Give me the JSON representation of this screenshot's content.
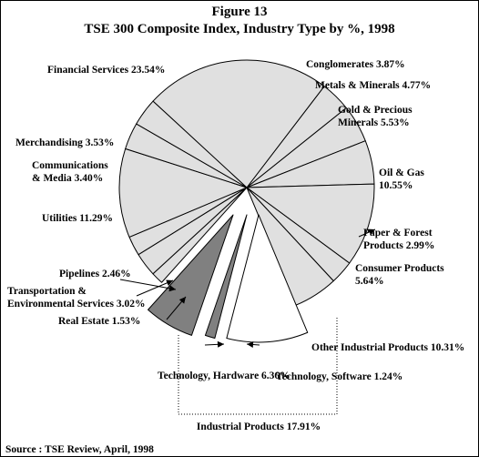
{
  "chart_data": {
    "type": "pie",
    "title": "Figure 13",
    "subtitle": "TSE 300 Composite Index, Industry Type by %, 1998",
    "source": "Source : TSE Review, April, 1998",
    "group_label": "Industrial Products 17.91%",
    "slices": [
      {
        "label": "Conglomerates",
        "value": 3.87,
        "display": "Conglomerates 3.87%",
        "color": "#e0e0e0"
      },
      {
        "label": "Metals & Minerals",
        "value": 4.77,
        "display": "Metals & Minerals 4.77%",
        "color": "#e0e0e0"
      },
      {
        "label": "Gold & Precious Minerals",
        "value": 5.53,
        "display": "Gold & Precious|Minerals 5.53%",
        "color": "#e0e0e0"
      },
      {
        "label": "Oil & Gas",
        "value": 10.55,
        "display": "Oil & Gas|10.55%",
        "color": "#e0e0e0"
      },
      {
        "label": "Paper & Forest Products",
        "value": 2.99,
        "display": "Paper & Forest|Products 2.99%",
        "color": "#e0e0e0"
      },
      {
        "label": "Consumer Products",
        "value": 5.64,
        "display": "Consumer Products|5.64%",
        "color": "#e0e0e0"
      },
      {
        "label": "Other Industrial Products",
        "value": 10.31,
        "display": "Other Industrial Products 10.31%",
        "color": "#ffffff",
        "exploded": true
      },
      {
        "label": "Technology, Software",
        "value": 1.24,
        "display": "Technology, Software 1.24%",
        "color": "#808080",
        "exploded": true
      },
      {
        "label": "Technology, Hardware",
        "value": 6.36,
        "display": "Technology, Hardware 6.36%",
        "color": "#808080",
        "exploded": true
      },
      {
        "label": "Real Estate",
        "value": 1.53,
        "display": "Real Estate 1.53%",
        "color": "#e0e0e0"
      },
      {
        "label": "Transportation & Environmental Services",
        "value": 3.02,
        "display": "Transportation &|Environmental Services 3.02%",
        "color": "#e0e0e0"
      },
      {
        "label": "Pipelines",
        "value": 2.46,
        "display": "Pipelines 2.46%",
        "color": "#e0e0e0"
      },
      {
        "label": "Utilities",
        "value": 11.29,
        "display": "Utilities 11.29%",
        "color": "#e0e0e0"
      },
      {
        "label": "Communications & Media",
        "value": 3.4,
        "display": "Communications|& Media 3.40%",
        "color": "#e0e0e0"
      },
      {
        "label": "Merchandising",
        "value": 3.53,
        "display": "Merchandising 3.53%",
        "color": "#e0e0e0"
      },
      {
        "label": "Financial Services",
        "value": 23.54,
        "display": "Financial Services 23.54%",
        "color": "#e0e0e0"
      }
    ]
  }
}
